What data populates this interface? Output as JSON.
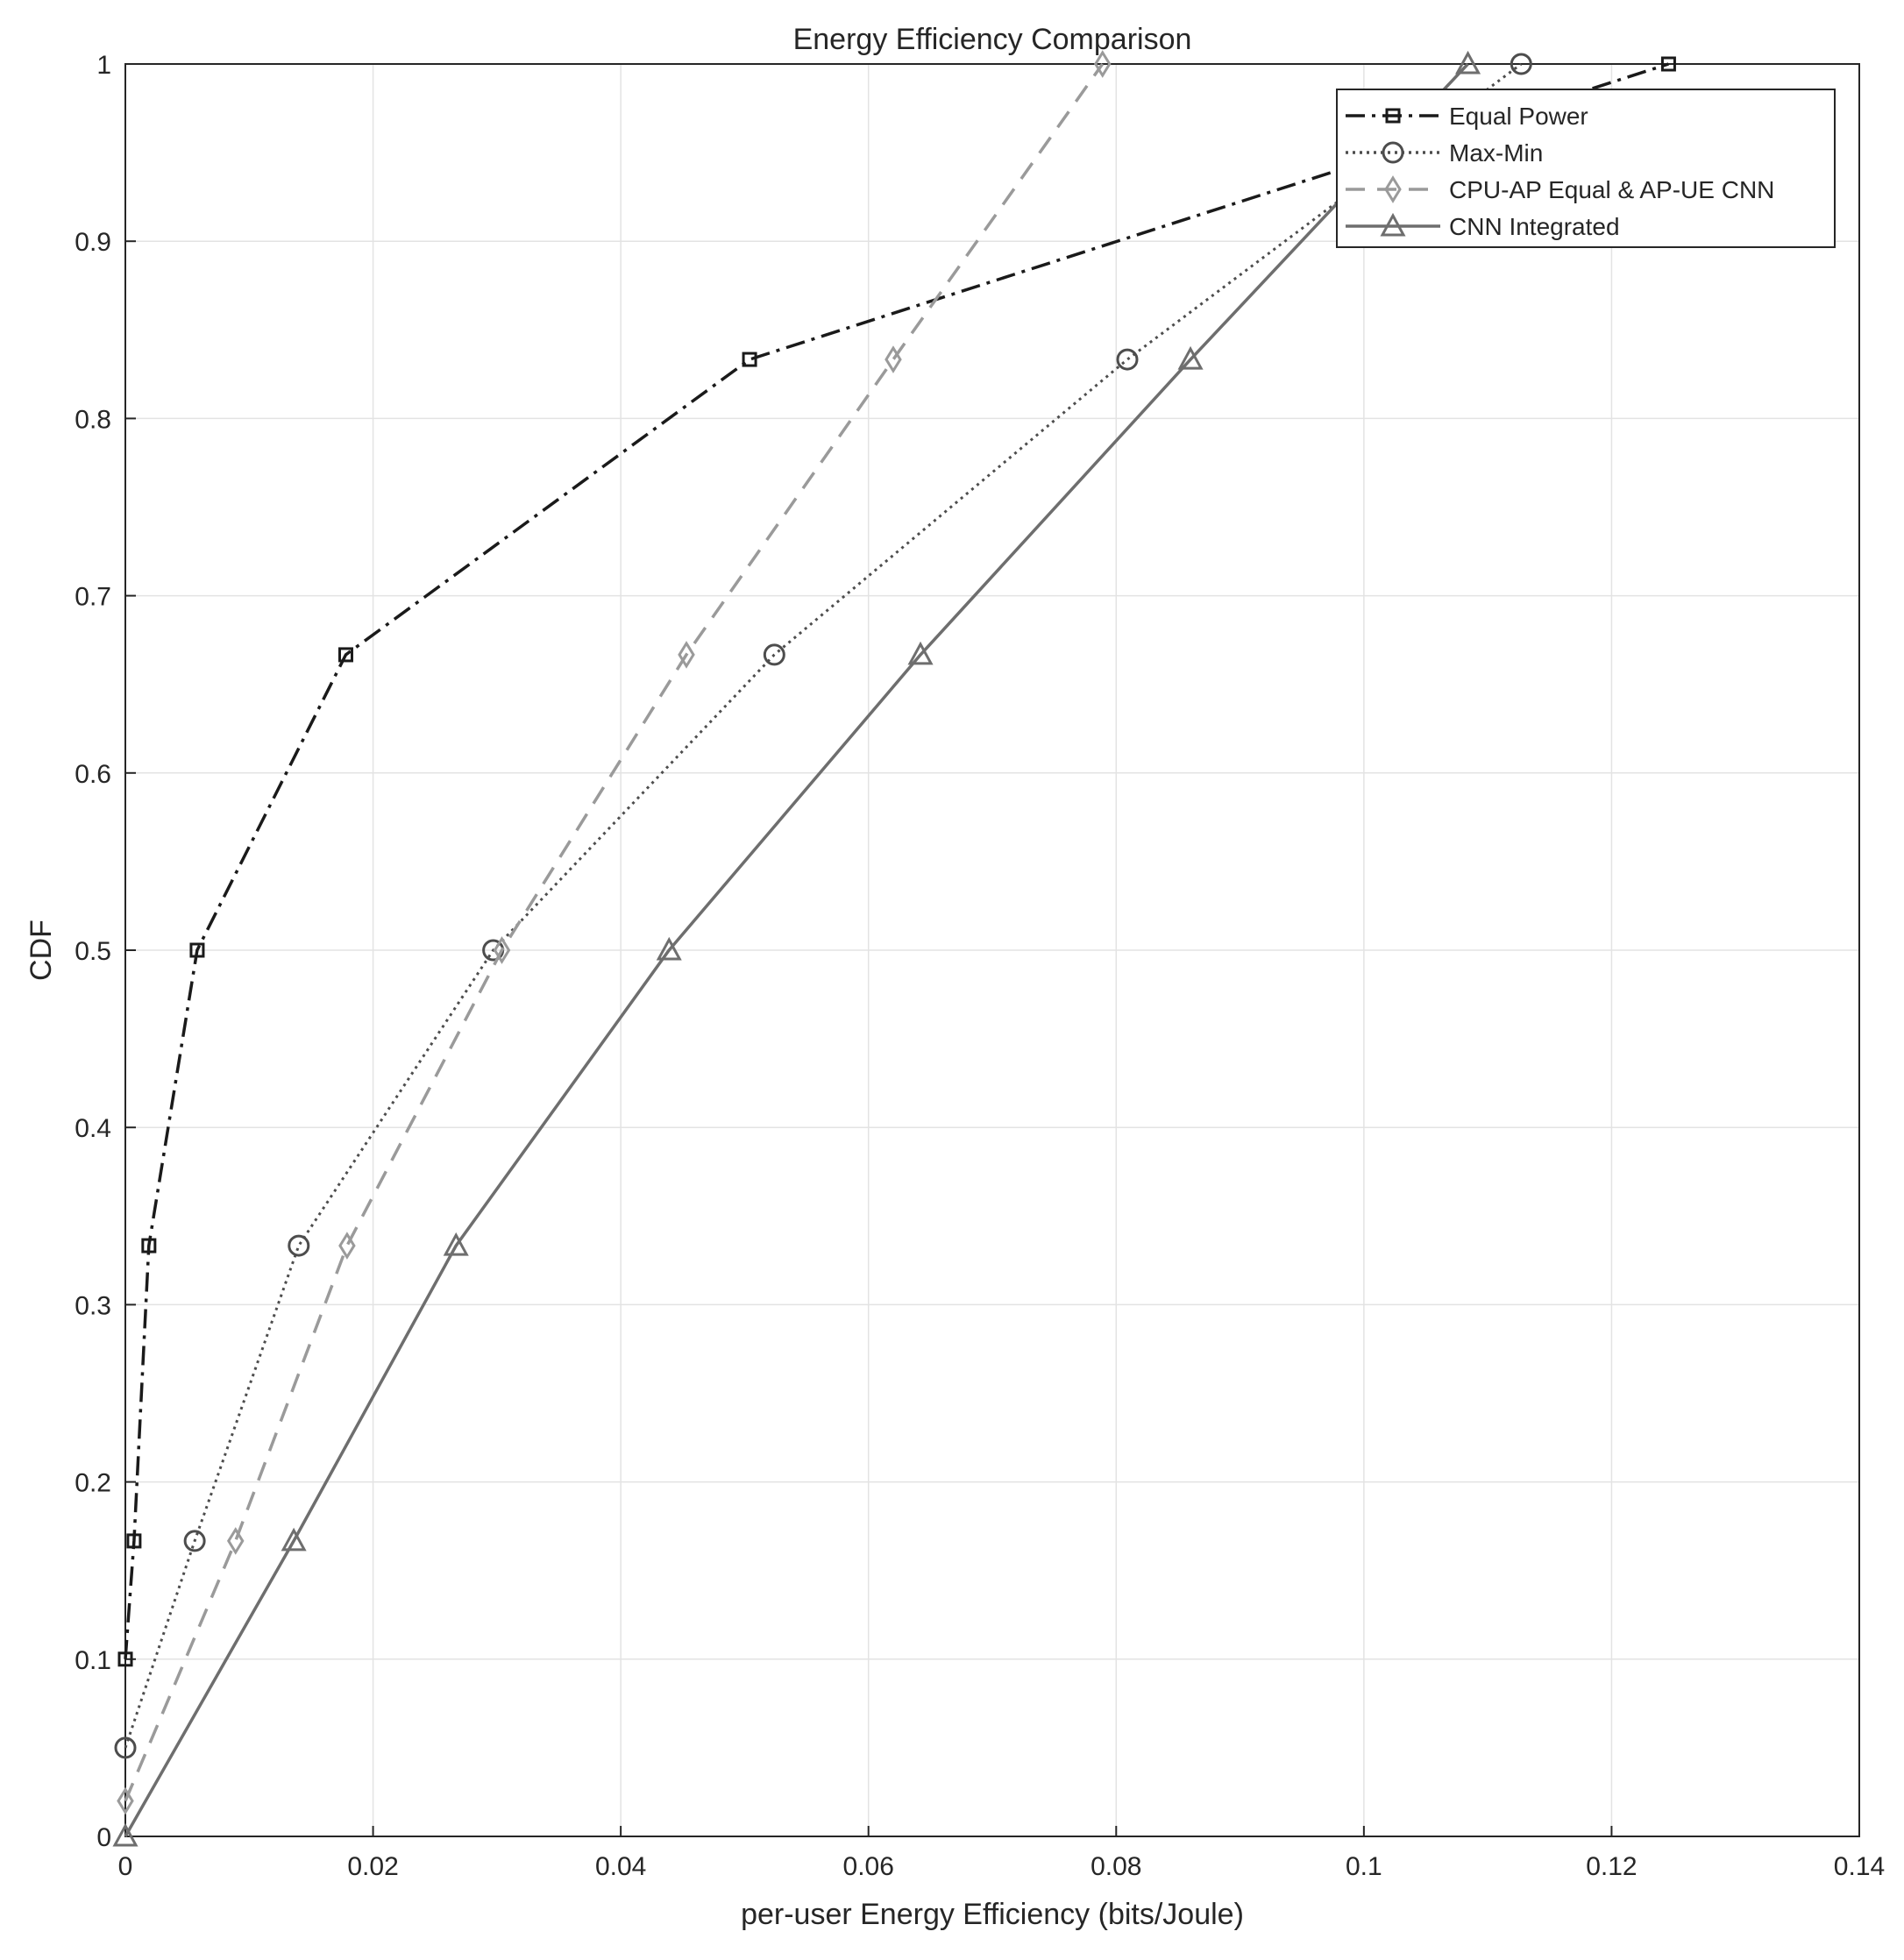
{
  "chart_data": {
    "type": "line",
    "title": "Energy Efficiency Comparison",
    "xlabel": "per-user Energy Efficiency (bits/Joule)",
    "ylabel": "CDF",
    "xlim": [
      0,
      0.14
    ],
    "ylim": [
      0,
      1
    ],
    "x_ticks": [
      "0",
      "0.02",
      "0.04",
      "0.06",
      "0.08",
      "0.1",
      "0.12",
      "0.14"
    ],
    "y_ticks": [
      "0",
      "0.1",
      "0.2",
      "0.3",
      "0.4",
      "0.5",
      "0.6",
      "0.7",
      "0.8",
      "0.9",
      "1"
    ],
    "grid": true,
    "legend_position": "top-right",
    "series": [
      {
        "name": "Equal Power",
        "color": "#1a1a1a",
        "line_style": "dash-dot",
        "marker": "square",
        "points": [
          [
            0.0,
            0.1
          ],
          [
            0.0007,
            0.1667
          ],
          [
            0.0019,
            0.3333
          ],
          [
            0.0058,
            0.5
          ],
          [
            0.0178,
            0.6667
          ],
          [
            0.0504,
            0.8333
          ],
          [
            0.1246,
            1.0
          ]
        ]
      },
      {
        "name": "Max-Min",
        "color": "#4d4d4d",
        "line_style": "dotted",
        "marker": "circle",
        "points": [
          [
            0.0,
            0.05
          ],
          [
            0.0056,
            0.1667
          ],
          [
            0.014,
            0.3333
          ],
          [
            0.0297,
            0.5
          ],
          [
            0.0524,
            0.6667
          ],
          [
            0.0809,
            0.8333
          ],
          [
            0.1127,
            1.0
          ]
        ]
      },
      {
        "name": "CPU-AP Equal & AP-UE CNN",
        "color": "#9a9a9a",
        "line_style": "dashed",
        "marker": "diamond",
        "points": [
          [
            0.0,
            0.02
          ],
          [
            0.0089,
            0.1667
          ],
          [
            0.0179,
            0.3333
          ],
          [
            0.0304,
            0.5
          ],
          [
            0.0453,
            0.6667
          ],
          [
            0.062,
            0.8333
          ],
          [
            0.0789,
            1.0
          ]
        ]
      },
      {
        "name": "CNN Integrated",
        "color": "#6e6e6e",
        "line_style": "solid",
        "marker": "triangle",
        "points": [
          [
            0.0,
            0.0
          ],
          [
            0.0136,
            0.1667
          ],
          [
            0.0267,
            0.3333
          ],
          [
            0.0439,
            0.5
          ],
          [
            0.0642,
            0.6667
          ],
          [
            0.086,
            0.8333
          ],
          [
            0.1084,
            1.0
          ]
        ]
      }
    ]
  }
}
